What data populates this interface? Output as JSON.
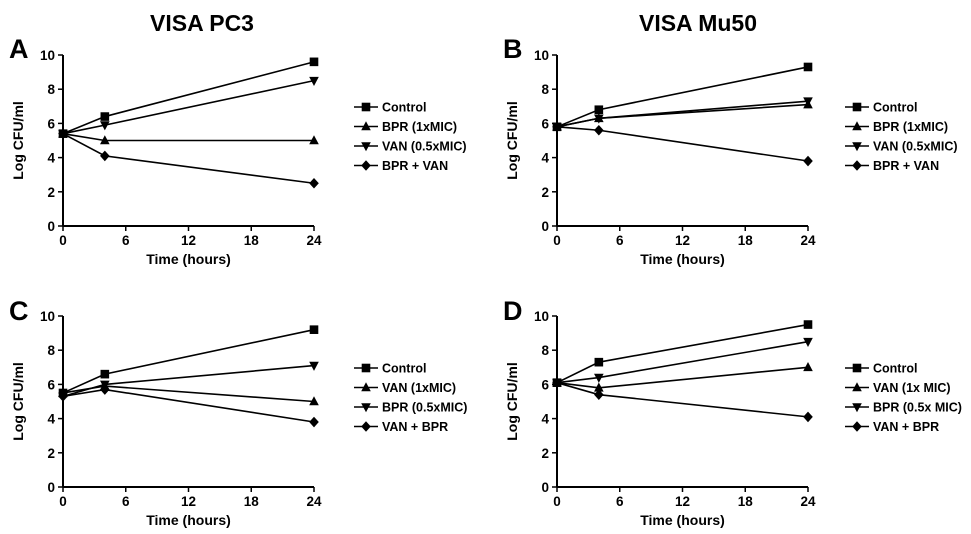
{
  "column_titles": [
    "VISA PC3",
    "VISA Mu50"
  ],
  "chart_data": [
    {
      "panel": "A",
      "type": "line",
      "xlabel": "Time (hours)",
      "ylabel": "Log CFU/ml",
      "xlim": [
        0,
        24
      ],
      "ylim": [
        0,
        10
      ],
      "xticks": [
        0,
        6,
        12,
        18,
        24
      ],
      "yticks": [
        0,
        2,
        4,
        6,
        8,
        10
      ],
      "legend_position": "right",
      "series": [
        {
          "name": "Control",
          "marker": "square",
          "x": [
            0,
            4,
            24
          ],
          "y": [
            5.4,
            6.4,
            9.6
          ]
        },
        {
          "name": "BPR (1xMIC)",
          "marker": "triangle-up",
          "x": [
            0,
            4,
            24
          ],
          "y": [
            5.4,
            5.0,
            5.0
          ]
        },
        {
          "name": "VAN (0.5xMIC)",
          "marker": "triangle-down",
          "x": [
            0,
            4,
            24
          ],
          "y": [
            5.4,
            5.9,
            8.5
          ]
        },
        {
          "name": "BPR + VAN",
          "marker": "diamond",
          "x": [
            0,
            4,
            24
          ],
          "y": [
            5.4,
            4.1,
            2.5
          ]
        }
      ]
    },
    {
      "panel": "B",
      "type": "line",
      "xlabel": "Time (hours)",
      "ylabel": "Log CFU/ml",
      "xlim": [
        0,
        24
      ],
      "ylim": [
        0,
        10
      ],
      "xticks": [
        0,
        6,
        12,
        18,
        24
      ],
      "yticks": [
        0,
        2,
        4,
        6,
        8,
        10
      ],
      "legend_position": "right",
      "series": [
        {
          "name": "Control",
          "marker": "square",
          "x": [
            0,
            4,
            24
          ],
          "y": [
            5.8,
            6.8,
            9.3
          ]
        },
        {
          "name": "BPR (1xMIC)",
          "marker": "triangle-up",
          "x": [
            0,
            4,
            24
          ],
          "y": [
            5.8,
            6.3,
            7.1
          ]
        },
        {
          "name": "VAN (0.5xMIC)",
          "marker": "triangle-down",
          "x": [
            0,
            4,
            24
          ],
          "y": [
            5.8,
            6.3,
            7.3
          ]
        },
        {
          "name": "BPR  + VAN",
          "marker": "diamond",
          "x": [
            0,
            4,
            24
          ],
          "y": [
            5.8,
            5.6,
            3.8
          ]
        }
      ]
    },
    {
      "panel": "C",
      "type": "line",
      "xlabel": "Time (hours)",
      "ylabel": "Log CFU/ml",
      "xlim": [
        0,
        24
      ],
      "ylim": [
        0,
        10
      ],
      "xticks": [
        0,
        6,
        12,
        18,
        24
      ],
      "yticks": [
        0,
        2,
        4,
        6,
        8,
        10
      ],
      "legend_position": "right",
      "series": [
        {
          "name": "Control",
          "marker": "square",
          "x": [
            0,
            4,
            24
          ],
          "y": [
            5.5,
            6.6,
            9.2
          ]
        },
        {
          "name": "VAN (1xMIC)",
          "marker": "triangle-up",
          "x": [
            0,
            4,
            24
          ],
          "y": [
            5.5,
            5.9,
            5.0
          ]
        },
        {
          "name": "BPR (0.5xMIC)",
          "marker": "triangle-down",
          "x": [
            0,
            4,
            24
          ],
          "y": [
            5.3,
            6.0,
            7.1
          ]
        },
        {
          "name": "VAN + BPR",
          "marker": "diamond",
          "x": [
            0,
            4,
            24
          ],
          "y": [
            5.3,
            5.7,
            3.8
          ]
        }
      ]
    },
    {
      "panel": "D",
      "type": "line",
      "xlabel": "Time (hours)",
      "ylabel": "Log CFU/ml",
      "xlim": [
        0,
        24
      ],
      "ylim": [
        0,
        10
      ],
      "xticks": [
        0,
        6,
        12,
        18,
        24
      ],
      "yticks": [
        0,
        2,
        4,
        6,
        8,
        10
      ],
      "legend_position": "right",
      "series": [
        {
          "name": "Control",
          "marker": "square",
          "x": [
            0,
            4,
            24
          ],
          "y": [
            6.1,
            7.3,
            9.5
          ]
        },
        {
          "name": "VAN (1x MIC)",
          "marker": "triangle-up",
          "x": [
            0,
            4,
            24
          ],
          "y": [
            6.1,
            5.8,
            7.0
          ]
        },
        {
          "name": "BPR (0.5x MIC)",
          "marker": "triangle-down",
          "x": [
            0,
            4,
            24
          ],
          "y": [
            6.1,
            6.4,
            8.5
          ]
        },
        {
          "name": "VAN + BPR",
          "marker": "diamond",
          "x": [
            0,
            4,
            24
          ],
          "y": [
            6.1,
            5.4,
            4.1
          ]
        }
      ]
    }
  ]
}
